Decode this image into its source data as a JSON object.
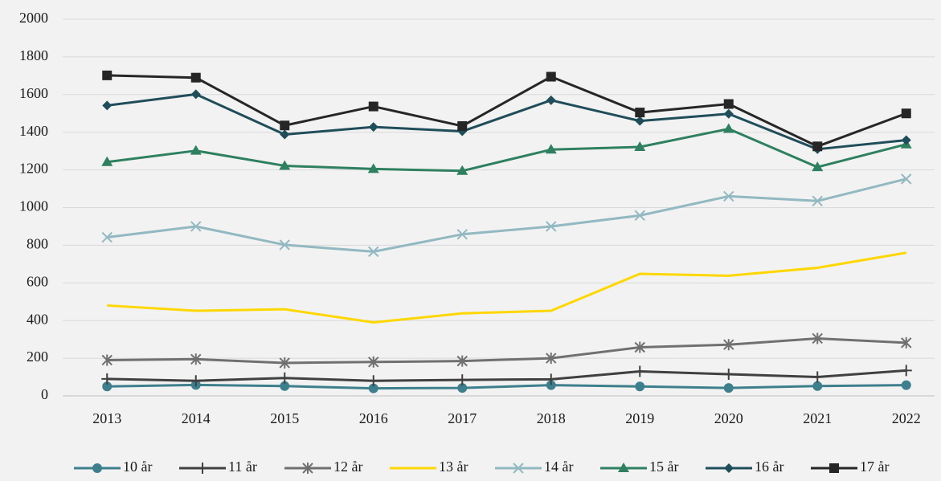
{
  "chart_data": {
    "type": "line",
    "categories": [
      "2013",
      "2014",
      "2015",
      "2016",
      "2017",
      "2018",
      "2019",
      "2020",
      "2021",
      "2022"
    ],
    "series": [
      {
        "name": "10 år",
        "color": "#3d7f8c",
        "marker": "circle",
        "values": [
          50,
          58,
          52,
          40,
          42,
          57,
          50,
          42,
          52,
          57
        ]
      },
      {
        "name": "11 år",
        "color": "#404040",
        "marker": "plus",
        "values": [
          90,
          80,
          95,
          80,
          85,
          88,
          130,
          115,
          100,
          135
        ]
      },
      {
        "name": "12 år",
        "color": "#707070",
        "marker": "star",
        "values": [
          190,
          195,
          175,
          180,
          185,
          200,
          258,
          272,
          305,
          282
        ]
      },
      {
        "name": "13 år",
        "color": "#ffd700",
        "marker": "none",
        "values": [
          480,
          452,
          460,
          390,
          438,
          452,
          648,
          638,
          680,
          760
        ]
      },
      {
        "name": "14 år",
        "color": "#92b9c1",
        "marker": "x",
        "values": [
          842,
          900,
          802,
          766,
          858,
          900,
          958,
          1060,
          1035,
          1152
        ]
      },
      {
        "name": "15 år",
        "color": "#2e8060",
        "marker": "triangle",
        "values": [
          1242,
          1302,
          1222,
          1205,
          1195,
          1308,
          1322,
          1418,
          1215,
          1336
        ]
      },
      {
        "name": "16 år",
        "color": "#1f4e5a",
        "marker": "diamond",
        "values": [
          1542,
          1602,
          1388,
          1428,
          1405,
          1570,
          1460,
          1498,
          1310,
          1358
        ]
      },
      {
        "name": "17 år",
        "color": "#262626",
        "marker": "square",
        "values": [
          1702,
          1690,
          1436,
          1537,
          1433,
          1695,
          1505,
          1550,
          1325,
          1500
        ]
      }
    ],
    "ylim": [
      0,
      2000
    ],
    "yticks": [
      0,
      200,
      400,
      600,
      800,
      1000,
      1200,
      1400,
      1600,
      1800,
      2000
    ],
    "grid": true,
    "legend": "bottom"
  }
}
